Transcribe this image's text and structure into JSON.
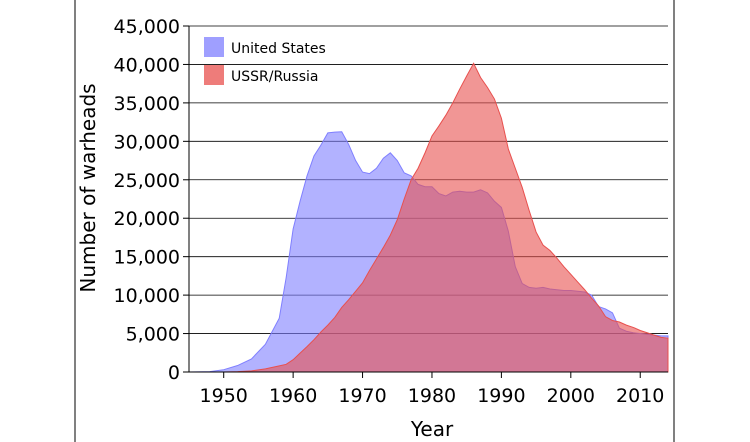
{
  "chart_data": {
    "type": "area",
    "xlabel": "Year",
    "ylabel": "Number of warheads",
    "xlim": [
      1945,
      2014
    ],
    "ylim": [
      0,
      45000
    ],
    "x_ticks": [
      1950,
      1960,
      1970,
      1980,
      1990,
      2000,
      2010
    ],
    "x_tick_labels": [
      "1950",
      "1960",
      "1970",
      "1980",
      "1990",
      "2000",
      "2010"
    ],
    "y_ticks": [
      0,
      5000,
      10000,
      15000,
      20000,
      25000,
      30000,
      35000,
      40000,
      45000
    ],
    "y_tick_labels": [
      "0",
      "5,000",
      "10,000",
      "15,000",
      "20,000",
      "25,000",
      "30,000",
      "35,000",
      "40,000",
      "45,000"
    ],
    "grid": "horizontal",
    "legend_position": "top-left",
    "series": [
      {
        "name": "United States",
        "color": "#7f7fff",
        "x": [
          1945,
          1948,
          1950,
          1952,
          1954,
          1956,
          1958,
          1959,
          1960,
          1961,
          1962,
          1963,
          1964,
          1965,
          1966,
          1967,
          1968,
          1969,
          1970,
          1971,
          1972,
          1973,
          1974,
          1975,
          1976,
          1977,
          1978,
          1979,
          1980,
          1981,
          1982,
          1983,
          1984,
          1985,
          1986,
          1987,
          1988,
          1989,
          1990,
          1991,
          1992,
          1993,
          1994,
          1995,
          1996,
          1997,
          1998,
          1999,
          2000,
          2001,
          2002,
          2003,
          2004,
          2005,
          2006,
          2007,
          2008,
          2009,
          2010,
          2011,
          2012,
          2013,
          2014
        ],
        "values": [
          6,
          50,
          300,
          840,
          1700,
          3600,
          7000,
          12300,
          18600,
          22200,
          25500,
          28100,
          29500,
          31100,
          31200,
          31250,
          29600,
          27500,
          26000,
          25800,
          26500,
          27800,
          28500,
          27500,
          25900,
          25500,
          24400,
          24100,
          24100,
          23200,
          22900,
          23400,
          23500,
          23400,
          23400,
          23700,
          23300,
          22200,
          21400,
          18300,
          13700,
          11500,
          11000,
          10900,
          11000,
          10800,
          10700,
          10600,
          10600,
          10500,
          10400,
          10000,
          8500,
          8200,
          7700,
          5700,
          5300,
          5100,
          5000,
          4900,
          4800,
          4700,
          4700
        ]
      },
      {
        "name": "USSR/Russia",
        "color": "#e8504e",
        "x": [
          1945,
          1948,
          1950,
          1952,
          1954,
          1956,
          1958,
          1959,
          1960,
          1961,
          1962,
          1963,
          1964,
          1965,
          1966,
          1967,
          1968,
          1969,
          1970,
          1971,
          1972,
          1973,
          1974,
          1975,
          1976,
          1977,
          1978,
          1979,
          1980,
          1981,
          1982,
          1983,
          1984,
          1985,
          1986,
          1987,
          1988,
          1989,
          1990,
          1991,
          1992,
          1993,
          1994,
          1995,
          1996,
          1997,
          1998,
          1999,
          2000,
          2001,
          2002,
          2003,
          2004,
          2005,
          2006,
          2007,
          2008,
          2009,
          2010,
          2011,
          2012,
          2013,
          2014
        ],
        "values": [
          0,
          0,
          5,
          50,
          150,
          400,
          800,
          1000,
          1600,
          2450,
          3300,
          4200,
          5200,
          6100,
          7100,
          8400,
          9400,
          10500,
          11600,
          13200,
          14700,
          16200,
          17800,
          19800,
          22500,
          25000,
          26500,
          28500,
          30700,
          32000,
          33400,
          35000,
          36800,
          38500,
          40150,
          38300,
          37000,
          35500,
          33000,
          29000,
          26500,
          24000,
          21000,
          18200,
          16500,
          15800,
          14800,
          13700,
          12700,
          11700,
          10700,
          9600,
          8600,
          7200,
          6700,
          6500,
          6100,
          5800,
          5400,
          5100,
          4800,
          4500,
          4400
        ]
      }
    ]
  }
}
